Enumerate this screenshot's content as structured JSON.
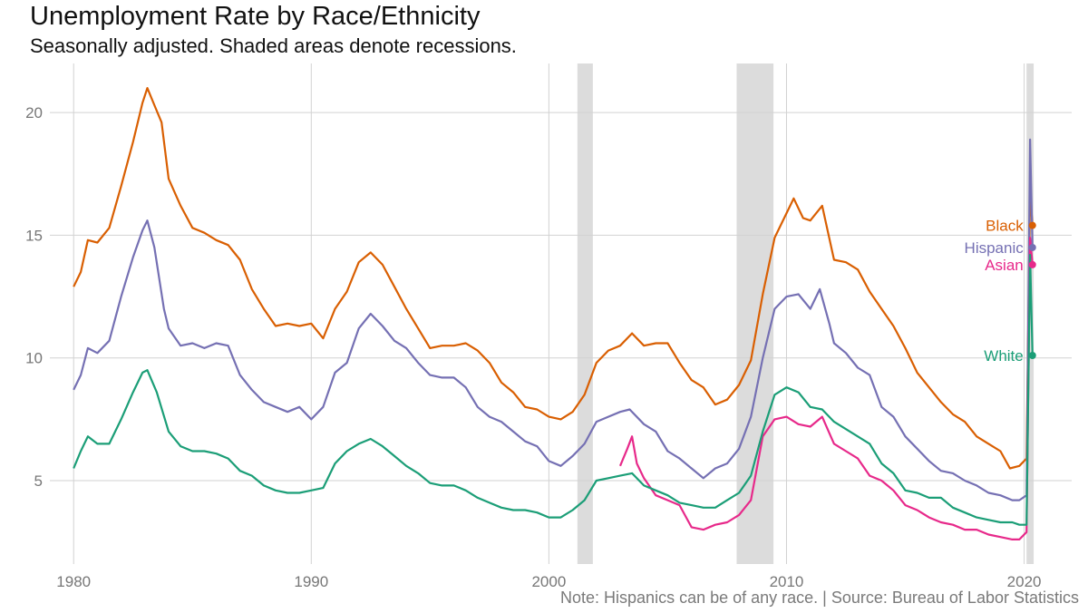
{
  "chart_data": {
    "type": "line",
    "title": "Unemployment Rate by Race/Ethnicity",
    "subtitle": "Seasonally adjusted. Shaded areas denote recessions.",
    "caption": "Note: Hispanics can be of any race. | Source: Bureau of Labor Statistics",
    "xlabel": "",
    "ylabel": "",
    "xlim": [
      1979.0,
      2022.0
    ],
    "ylim": [
      1.6,
      22.0
    ],
    "x_ticks": [
      1980,
      1990,
      2000,
      2010,
      2020
    ],
    "y_ticks": [
      5,
      10,
      15,
      20
    ],
    "grid": true,
    "recessions": [
      [
        2001.2,
        2001.85
      ],
      [
        2007.9,
        2009.45
      ],
      [
        2020.1,
        2020.4
      ]
    ],
    "series": [
      {
        "name": "Black",
        "color": "#d95f02",
        "points": [
          [
            1980.0,
            12.9
          ],
          [
            1980.3,
            13.5
          ],
          [
            1980.6,
            14.8
          ],
          [
            1981.0,
            14.7
          ],
          [
            1981.5,
            15.3
          ],
          [
            1982.0,
            17.0
          ],
          [
            1982.5,
            18.8
          ],
          [
            1982.9,
            20.4
          ],
          [
            1983.1,
            21.0
          ],
          [
            1983.4,
            20.3
          ],
          [
            1983.7,
            19.6
          ],
          [
            1984.0,
            17.3
          ],
          [
            1984.5,
            16.2
          ],
          [
            1985.0,
            15.3
          ],
          [
            1985.5,
            15.1
          ],
          [
            1986.0,
            14.8
          ],
          [
            1986.5,
            14.6
          ],
          [
            1987.0,
            14.0
          ],
          [
            1987.5,
            12.8
          ],
          [
            1988.0,
            12.0
          ],
          [
            1988.5,
            11.3
          ],
          [
            1989.0,
            11.4
          ],
          [
            1989.5,
            11.3
          ],
          [
            1990.0,
            11.4
          ],
          [
            1990.5,
            10.8
          ],
          [
            1991.0,
            12.0
          ],
          [
            1991.5,
            12.7
          ],
          [
            1992.0,
            13.9
          ],
          [
            1992.5,
            14.3
          ],
          [
            1993.0,
            13.8
          ],
          [
            1993.5,
            12.9
          ],
          [
            1994.0,
            12.0
          ],
          [
            1994.5,
            11.2
          ],
          [
            1995.0,
            10.4
          ],
          [
            1995.5,
            10.5
          ],
          [
            1996.0,
            10.5
          ],
          [
            1996.5,
            10.6
          ],
          [
            1997.0,
            10.3
          ],
          [
            1997.5,
            9.8
          ],
          [
            1998.0,
            9.0
          ],
          [
            1998.5,
            8.6
          ],
          [
            1999.0,
            8.0
          ],
          [
            1999.5,
            7.9
          ],
          [
            2000.0,
            7.6
          ],
          [
            2000.5,
            7.5
          ],
          [
            2001.0,
            7.8
          ],
          [
            2001.5,
            8.5
          ],
          [
            2002.0,
            9.8
          ],
          [
            2002.5,
            10.3
          ],
          [
            2003.0,
            10.5
          ],
          [
            2003.5,
            11.0
          ],
          [
            2004.0,
            10.5
          ],
          [
            2004.5,
            10.6
          ],
          [
            2005.0,
            10.6
          ],
          [
            2005.5,
            9.8
          ],
          [
            2006.0,
            9.1
          ],
          [
            2006.5,
            8.8
          ],
          [
            2007.0,
            8.1
          ],
          [
            2007.5,
            8.3
          ],
          [
            2008.0,
            8.9
          ],
          [
            2008.5,
            9.9
          ],
          [
            2009.0,
            12.6
          ],
          [
            2009.5,
            14.9
          ],
          [
            2010.0,
            15.9
          ],
          [
            2010.3,
            16.5
          ],
          [
            2010.7,
            15.7
          ],
          [
            2011.0,
            15.6
          ],
          [
            2011.5,
            16.2
          ],
          [
            2012.0,
            14.0
          ],
          [
            2012.5,
            13.9
          ],
          [
            2013.0,
            13.6
          ],
          [
            2013.5,
            12.7
          ],
          [
            2014.0,
            12.0
          ],
          [
            2014.5,
            11.3
          ],
          [
            2015.0,
            10.4
          ],
          [
            2015.5,
            9.4
          ],
          [
            2016.0,
            8.8
          ],
          [
            2016.5,
            8.2
          ],
          [
            2017.0,
            7.7
          ],
          [
            2017.5,
            7.4
          ],
          [
            2018.0,
            6.8
          ],
          [
            2018.5,
            6.5
          ],
          [
            2019.0,
            6.2
          ],
          [
            2019.4,
            5.5
          ],
          [
            2019.8,
            5.6
          ],
          [
            2020.1,
            5.9
          ],
          [
            2020.25,
            16.7
          ],
          [
            2020.35,
            15.4
          ]
        ]
      },
      {
        "name": "Hispanic",
        "color": "#7570b3",
        "points": [
          [
            1980.0,
            8.7
          ],
          [
            1980.3,
            9.3
          ],
          [
            1980.6,
            10.4
          ],
          [
            1981.0,
            10.2
          ],
          [
            1981.5,
            10.7
          ],
          [
            1982.0,
            12.5
          ],
          [
            1982.5,
            14.1
          ],
          [
            1982.9,
            15.2
          ],
          [
            1983.1,
            15.6
          ],
          [
            1983.4,
            14.5
          ],
          [
            1983.8,
            12.0
          ],
          [
            1984.0,
            11.2
          ],
          [
            1984.5,
            10.5
          ],
          [
            1985.0,
            10.6
          ],
          [
            1985.5,
            10.4
          ],
          [
            1986.0,
            10.6
          ],
          [
            1986.5,
            10.5
          ],
          [
            1987.0,
            9.3
          ],
          [
            1987.5,
            8.7
          ],
          [
            1988.0,
            8.2
          ],
          [
            1988.5,
            8.0
          ],
          [
            1989.0,
            7.8
          ],
          [
            1989.5,
            8.0
          ],
          [
            1990.0,
            7.5
          ],
          [
            1990.5,
            8.0
          ],
          [
            1991.0,
            9.4
          ],
          [
            1991.5,
            9.8
          ],
          [
            1992.0,
            11.2
          ],
          [
            1992.5,
            11.8
          ],
          [
            1993.0,
            11.3
          ],
          [
            1993.5,
            10.7
          ],
          [
            1994.0,
            10.4
          ],
          [
            1994.5,
            9.8
          ],
          [
            1995.0,
            9.3
          ],
          [
            1995.5,
            9.2
          ],
          [
            1996.0,
            9.2
          ],
          [
            1996.5,
            8.8
          ],
          [
            1997.0,
            8.0
          ],
          [
            1997.5,
            7.6
          ],
          [
            1998.0,
            7.4
          ],
          [
            1998.5,
            7.0
          ],
          [
            1999.0,
            6.6
          ],
          [
            1999.5,
            6.4
          ],
          [
            2000.0,
            5.8
          ],
          [
            2000.5,
            5.6
          ],
          [
            2001.0,
            6.0
          ],
          [
            2001.5,
            6.5
          ],
          [
            2002.0,
            7.4
          ],
          [
            2002.5,
            7.6
          ],
          [
            2003.0,
            7.8
          ],
          [
            2003.4,
            7.9
          ],
          [
            2004.0,
            7.3
          ],
          [
            2004.5,
            7.0
          ],
          [
            2005.0,
            6.2
          ],
          [
            2005.5,
            5.9
          ],
          [
            2006.0,
            5.5
          ],
          [
            2006.5,
            5.1
          ],
          [
            2007.0,
            5.5
          ],
          [
            2007.5,
            5.7
          ],
          [
            2008.0,
            6.3
          ],
          [
            2008.5,
            7.6
          ],
          [
            2009.0,
            10.0
          ],
          [
            2009.5,
            12.0
          ],
          [
            2010.0,
            12.5
          ],
          [
            2010.5,
            12.6
          ],
          [
            2011.0,
            12.0
          ],
          [
            2011.4,
            12.8
          ],
          [
            2011.8,
            11.4
          ],
          [
            2012.0,
            10.6
          ],
          [
            2012.5,
            10.2
          ],
          [
            2013.0,
            9.6
          ],
          [
            2013.5,
            9.3
          ],
          [
            2014.0,
            8.0
          ],
          [
            2014.5,
            7.6
          ],
          [
            2015.0,
            6.8
          ],
          [
            2015.5,
            6.3
          ],
          [
            2016.0,
            5.8
          ],
          [
            2016.5,
            5.4
          ],
          [
            2017.0,
            5.3
          ],
          [
            2017.5,
            5.0
          ],
          [
            2018.0,
            4.8
          ],
          [
            2018.5,
            4.5
          ],
          [
            2019.0,
            4.4
          ],
          [
            2019.5,
            4.2
          ],
          [
            2019.8,
            4.2
          ],
          [
            2020.1,
            4.4
          ],
          [
            2020.25,
            18.9
          ],
          [
            2020.35,
            14.5
          ]
        ]
      },
      {
        "name": "Asian",
        "color": "#e7298a",
        "points": [
          [
            2003.0,
            5.6
          ],
          [
            2003.3,
            6.3
          ],
          [
            2003.5,
            6.8
          ],
          [
            2003.7,
            5.7
          ],
          [
            2004.0,
            5.1
          ],
          [
            2004.5,
            4.4
          ],
          [
            2005.0,
            4.2
          ],
          [
            2005.5,
            4.0
          ],
          [
            2006.0,
            3.1
          ],
          [
            2006.5,
            3.0
          ],
          [
            2007.0,
            3.2
          ],
          [
            2007.5,
            3.3
          ],
          [
            2008.0,
            3.6
          ],
          [
            2008.5,
            4.2
          ],
          [
            2009.0,
            6.8
          ],
          [
            2009.5,
            7.5
          ],
          [
            2010.0,
            7.6
          ],
          [
            2010.5,
            7.3
          ],
          [
            2011.0,
            7.2
          ],
          [
            2011.5,
            7.6
          ],
          [
            2012.0,
            6.5
          ],
          [
            2012.5,
            6.2
          ],
          [
            2013.0,
            5.9
          ],
          [
            2013.5,
            5.2
          ],
          [
            2014.0,
            5.0
          ],
          [
            2014.5,
            4.6
          ],
          [
            2015.0,
            4.0
          ],
          [
            2015.5,
            3.8
          ],
          [
            2016.0,
            3.5
          ],
          [
            2016.5,
            3.3
          ],
          [
            2017.0,
            3.2
          ],
          [
            2017.5,
            3.0
          ],
          [
            2018.0,
            3.0
          ],
          [
            2018.5,
            2.8
          ],
          [
            2019.0,
            2.7
          ],
          [
            2019.5,
            2.6
          ],
          [
            2019.8,
            2.6
          ],
          [
            2020.1,
            2.9
          ],
          [
            2020.25,
            14.9
          ],
          [
            2020.35,
            13.8
          ]
        ]
      },
      {
        "name": "White",
        "color": "#1b9e77",
        "points": [
          [
            1980.0,
            5.5
          ],
          [
            1980.3,
            6.2
          ],
          [
            1980.6,
            6.8
          ],
          [
            1981.0,
            6.5
          ],
          [
            1981.5,
            6.5
          ],
          [
            1982.0,
            7.5
          ],
          [
            1982.5,
            8.6
          ],
          [
            1982.9,
            9.4
          ],
          [
            1983.1,
            9.5
          ],
          [
            1983.5,
            8.6
          ],
          [
            1984.0,
            7.0
          ],
          [
            1984.5,
            6.4
          ],
          [
            1985.0,
            6.2
          ],
          [
            1985.5,
            6.2
          ],
          [
            1986.0,
            6.1
          ],
          [
            1986.5,
            5.9
          ],
          [
            1987.0,
            5.4
          ],
          [
            1987.5,
            5.2
          ],
          [
            1988.0,
            4.8
          ],
          [
            1988.5,
            4.6
          ],
          [
            1989.0,
            4.5
          ],
          [
            1989.5,
            4.5
          ],
          [
            1990.0,
            4.6
          ],
          [
            1990.5,
            4.7
          ],
          [
            1991.0,
            5.7
          ],
          [
            1991.5,
            6.2
          ],
          [
            1992.0,
            6.5
          ],
          [
            1992.5,
            6.7
          ],
          [
            1993.0,
            6.4
          ],
          [
            1993.5,
            6.0
          ],
          [
            1994.0,
            5.6
          ],
          [
            1994.5,
            5.3
          ],
          [
            1995.0,
            4.9
          ],
          [
            1995.5,
            4.8
          ],
          [
            1996.0,
            4.8
          ],
          [
            1996.5,
            4.6
          ],
          [
            1997.0,
            4.3
          ],
          [
            1997.5,
            4.1
          ],
          [
            1998.0,
            3.9
          ],
          [
            1998.5,
            3.8
          ],
          [
            1999.0,
            3.8
          ],
          [
            1999.5,
            3.7
          ],
          [
            2000.0,
            3.5
          ],
          [
            2000.5,
            3.5
          ],
          [
            2001.0,
            3.8
          ],
          [
            2001.5,
            4.2
          ],
          [
            2002.0,
            5.0
          ],
          [
            2002.5,
            5.1
          ],
          [
            2003.0,
            5.2
          ],
          [
            2003.5,
            5.3
          ],
          [
            2004.0,
            4.8
          ],
          [
            2004.5,
            4.6
          ],
          [
            2005.0,
            4.4
          ],
          [
            2005.5,
            4.1
          ],
          [
            2006.0,
            4.0
          ],
          [
            2006.5,
            3.9
          ],
          [
            2007.0,
            3.9
          ],
          [
            2007.5,
            4.2
          ],
          [
            2008.0,
            4.5
          ],
          [
            2008.5,
            5.2
          ],
          [
            2009.0,
            7.0
          ],
          [
            2009.5,
            8.5
          ],
          [
            2010.0,
            8.8
          ],
          [
            2010.5,
            8.6
          ],
          [
            2011.0,
            8.0
          ],
          [
            2011.5,
            7.9
          ],
          [
            2012.0,
            7.4
          ],
          [
            2012.5,
            7.1
          ],
          [
            2013.0,
            6.8
          ],
          [
            2013.5,
            6.5
          ],
          [
            2014.0,
            5.7
          ],
          [
            2014.5,
            5.3
          ],
          [
            2015.0,
            4.6
          ],
          [
            2015.5,
            4.5
          ],
          [
            2016.0,
            4.3
          ],
          [
            2016.5,
            4.3
          ],
          [
            2017.0,
            3.9
          ],
          [
            2017.5,
            3.7
          ],
          [
            2018.0,
            3.5
          ],
          [
            2018.5,
            3.4
          ],
          [
            2019.0,
            3.3
          ],
          [
            2019.5,
            3.3
          ],
          [
            2019.8,
            3.2
          ],
          [
            2020.1,
            3.2
          ],
          [
            2020.25,
            14.2
          ],
          [
            2020.35,
            10.1
          ]
        ]
      }
    ]
  }
}
